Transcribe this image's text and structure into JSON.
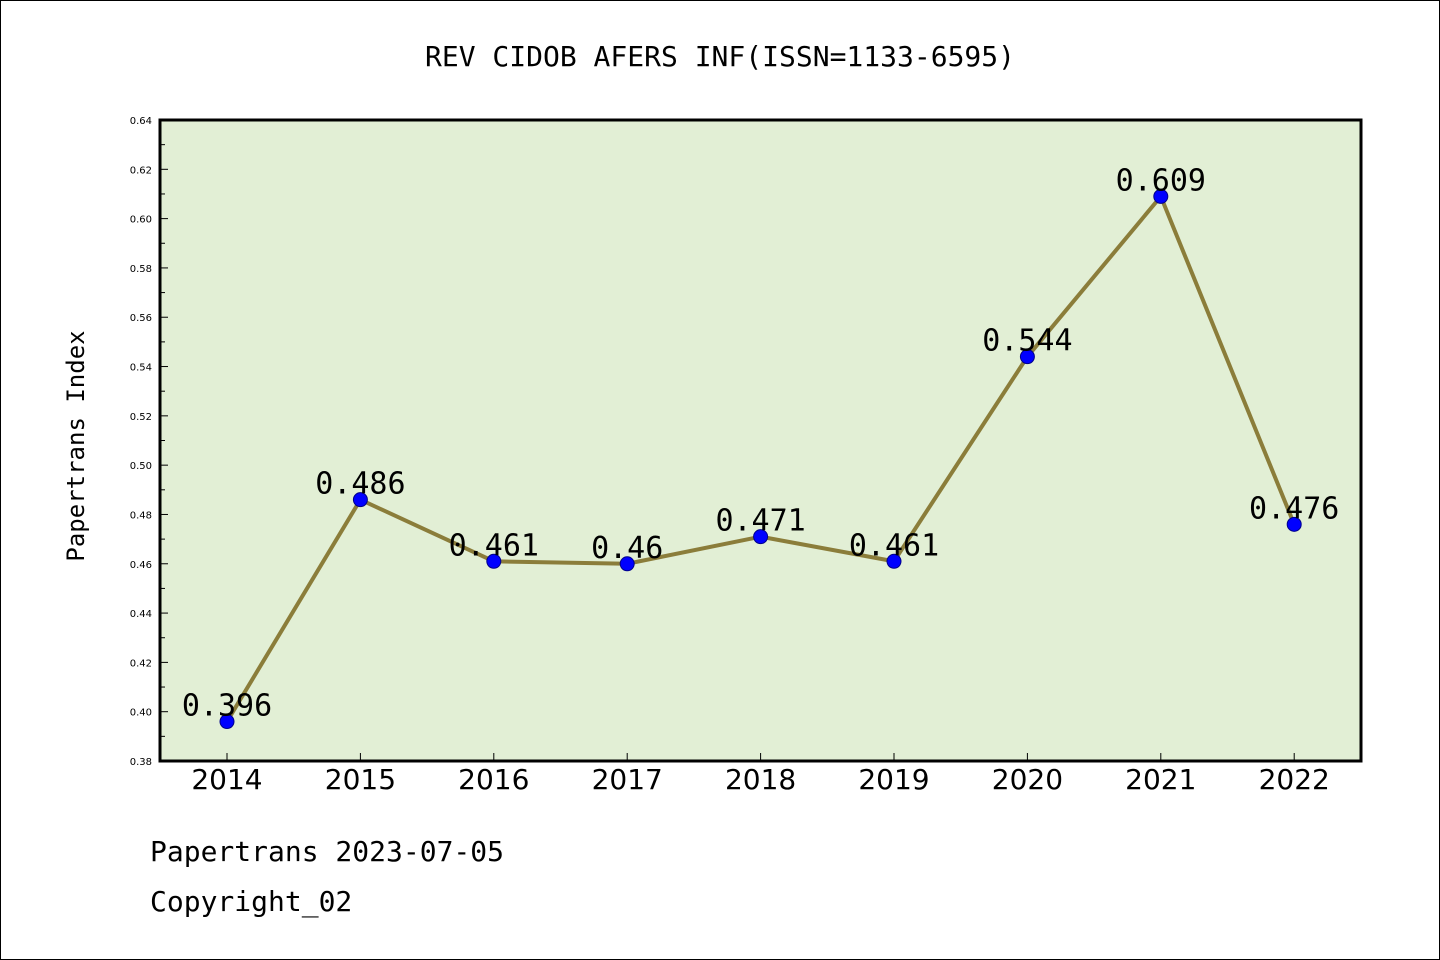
{
  "chart_data": {
    "type": "line",
    "title": "REV CIDOB AFERS INF(ISSN=1133-6595)",
    "xlabel": "",
    "ylabel": "Papertrans Index",
    "categories": [
      "2014",
      "2015",
      "2016",
      "2017",
      "2018",
      "2019",
      "2020",
      "2021",
      "2022"
    ],
    "series": [
      {
        "values": [
          0.396,
          0.486,
          0.461,
          0.46,
          0.471,
          0.461,
          0.544,
          0.609,
          0.476
        ],
        "labels": [
          "0.396",
          "0.486",
          "0.461",
          "0.46",
          "0.471",
          "0.461",
          "0.544",
          "0.609",
          "0.476"
        ]
      }
    ],
    "ylim": [
      0.38,
      0.64
    ],
    "yticks": [
      "0.38",
      "0.40",
      "0.42",
      "0.44",
      "0.46",
      "0.48",
      "0.50",
      "0.52",
      "0.54",
      "0.56",
      "0.58",
      "0.60",
      "0.62",
      "0.64"
    ],
    "grid": false,
    "colors": {
      "plot_background": "#e2efd5",
      "line": "#8b7d3a",
      "marker": "#0000ff"
    }
  },
  "footer": {
    "line1": "Papertrans 2023-07-05",
    "line2": "Copyright_02"
  }
}
